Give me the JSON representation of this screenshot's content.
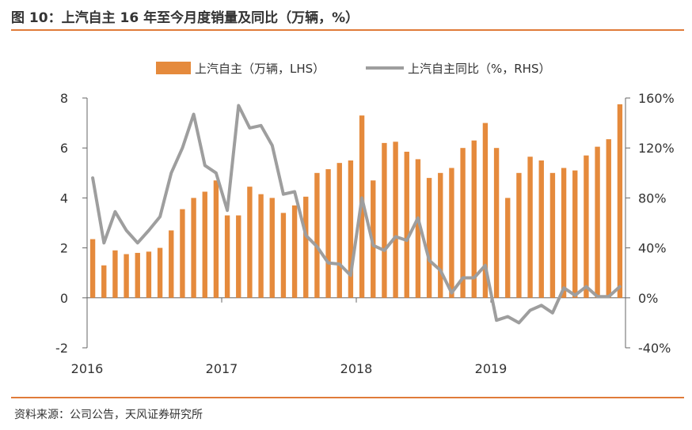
{
  "title": "图 10：上汽自主 16 年至今月度销量及同比（万辆，%）",
  "source": "资料来源：公司公告，天风证券研究所",
  "colors": {
    "bar": "#e58a3c",
    "line": "#9e9e9e",
    "rule": "#e07b39",
    "axis": "#666666"
  },
  "chart_data": {
    "type": "bar+line",
    "legend_position": "top",
    "grid": false,
    "x_tick_labels": [
      "2016",
      "2017",
      "2018",
      "2019"
    ],
    "ylim_left": [
      -2,
      8
    ],
    "yticks_left": [
      "-2",
      "0",
      "2",
      "4",
      "6",
      "8"
    ],
    "ylim_right": [
      -40,
      160
    ],
    "yticks_right": [
      "-40%",
      "0%",
      "40%",
      "80%",
      "120%",
      "160%"
    ],
    "months": [
      "2016-01",
      "2016-02",
      "2016-03",
      "2016-04",
      "2016-05",
      "2016-06",
      "2016-07",
      "2016-08",
      "2016-09",
      "2016-10",
      "2016-11",
      "2016-12",
      "2017-01",
      "2017-02",
      "2017-03",
      "2017-04",
      "2017-05",
      "2017-06",
      "2017-07",
      "2017-08",
      "2017-09",
      "2017-10",
      "2017-11",
      "2017-12",
      "2018-01",
      "2018-02",
      "2018-03",
      "2018-04",
      "2018-05",
      "2018-06",
      "2018-07",
      "2018-08",
      "2018-09",
      "2018-10",
      "2018-11",
      "2018-12",
      "2019-01",
      "2019-02",
      "2019-03",
      "2019-04",
      "2019-05",
      "2019-06",
      "2019-07",
      "2019-08",
      "2019-09",
      "2019-10",
      "2019-11",
      "2019-12"
    ],
    "series": [
      {
        "name": "上汽自主（万辆，LHS）",
        "type": "bar",
        "axis": "left",
        "values": [
          2.35,
          1.3,
          1.9,
          1.75,
          1.8,
          1.85,
          2.0,
          2.7,
          3.55,
          4.0,
          4.25,
          4.7,
          3.3,
          3.3,
          4.45,
          4.15,
          4.0,
          3.4,
          3.7,
          4.05,
          5.0,
          5.15,
          5.4,
          5.5,
          7.3,
          4.7,
          6.2,
          6.25,
          5.85,
          5.55,
          4.8,
          5.0,
          5.2,
          6.0,
          6.3,
          7.0,
          6.0,
          4.0,
          5.0,
          5.65,
          5.5,
          5.0,
          5.2,
          5.1,
          5.7,
          6.05,
          6.35,
          7.75
        ]
      },
      {
        "name": "上汽自主同比（%，RHS）",
        "type": "line",
        "axis": "right",
        "values": [
          96,
          44,
          69,
          54,
          44,
          54,
          65,
          100,
          120,
          147,
          106,
          100,
          70,
          154,
          136,
          138,
          122,
          83,
          85,
          50,
          41,
          28,
          27,
          18,
          80,
          42,
          38,
          49,
          46,
          64,
          30,
          22,
          4,
          16,
          16,
          26,
          -18,
          -15,
          -20,
          -10,
          -6,
          -12,
          8,
          2,
          9,
          1,
          1,
          9
        ]
      }
    ]
  }
}
